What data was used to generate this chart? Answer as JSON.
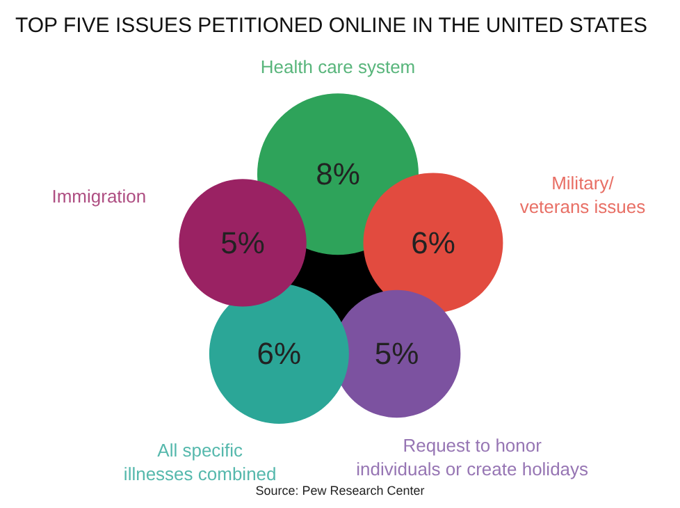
{
  "chart_data": {
    "type": "other",
    "title": "TOP FIVE ISSUES PETITIONED ONLINE IN THE UNITED STATES",
    "categories": [
      "Health care system",
      "Military/\nveterans issues",
      "Request to honor\nindividuals or create holidays",
      "All specific\nillnesses combined",
      "Immigration"
    ],
    "values": [
      8,
      6,
      5,
      6,
      5
    ],
    "value_labels": [
      "8%",
      "6%",
      "5%",
      "6%",
      "5%"
    ],
    "colors": [
      "#2ea35a",
      "#e24b3f",
      "#7c52a0",
      "#2ba697",
      "#9a2263"
    ],
    "annotations": [
      "Source: Pew Research Center"
    ]
  }
}
